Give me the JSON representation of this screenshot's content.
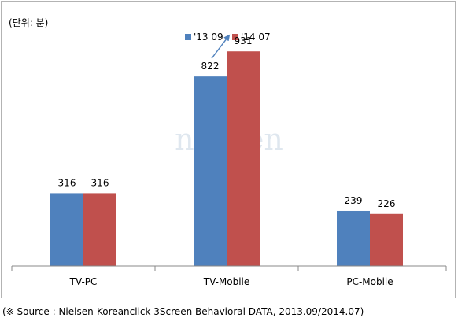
{
  "unit_label": "(단위: 분)",
  "watermark": "nielsen",
  "source_note": "(※ Source : Nielsen-Koreanclick 3Screen Behavioral DATA, 2013.09/2014.07)",
  "colors": {
    "series1": "#4f81bd",
    "series2": "#c0504d",
    "arrow": "#4f81bd",
    "axis": "#888888"
  },
  "chart_data": {
    "type": "bar",
    "categories": [
      "TV-PC",
      "TV-Mobile",
      "PC-Mobile"
    ],
    "series": [
      {
        "name": "'13 09",
        "values": [
          316,
          822,
          239
        ]
      },
      {
        "name": "'14 07",
        "values": [
          316,
          931,
          226
        ]
      }
    ],
    "data_labels": [
      [
        "316",
        "822",
        "239"
      ],
      [
        "316",
        "931",
        "226"
      ]
    ],
    "ylim": [
      0,
      1000
    ],
    "grid": false,
    "legend": "top-center",
    "annotations": [
      "arrow from '13 09 to '14 07 on TV-Mobile"
    ]
  }
}
